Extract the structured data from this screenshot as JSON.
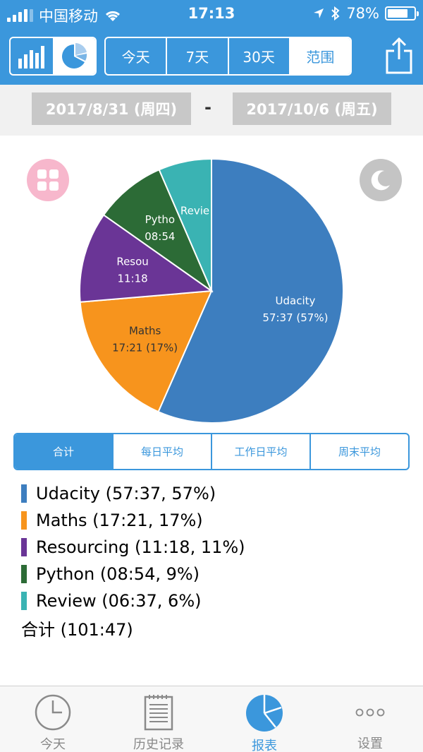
{
  "status_bar": {
    "carrier": "中国移动",
    "time": "17:13",
    "battery": "78%",
    "battery_level": 0.78
  },
  "header": {
    "view_options": [
      {
        "icon": "bar-chart-icon",
        "active": false
      },
      {
        "icon": "pie-chart-icon",
        "active": true
      }
    ],
    "range_tabs": [
      {
        "label": "今天",
        "active": false
      },
      {
        "label": "7天",
        "active": false
      },
      {
        "label": "30天",
        "active": false
      },
      {
        "label": "范围",
        "active": true
      }
    ],
    "share_icon": "share-icon"
  },
  "date_range": {
    "start": "2017/8/31 (周四)",
    "separator": "-",
    "end": "2017/10/6 (周五)"
  },
  "chart_data": {
    "type": "pie",
    "slices": [
      {
        "label": "Udacity",
        "value": "57:37 (57%)",
        "minutes": 3457,
        "color": "#3d7ebf"
      },
      {
        "label": "Maths",
        "value": "17:21 (17%)",
        "minutes": 1041,
        "color": "#f7941d"
      },
      {
        "label": "Resou",
        "value": "11:18",
        "minutes": 678,
        "color": "#6a3596"
      },
      {
        "label": "Pytho",
        "value": "08:54",
        "minutes": 534,
        "color": "#2c6b36"
      },
      {
        "label": "Revie",
        "value": "",
        "minutes": 397,
        "color": "#3ab3b3"
      }
    ]
  },
  "chart_buttons": {
    "left_icon": "grid-icon",
    "left_color": "#f7b7cc",
    "right_icon": "moon-icon",
    "right_color": "#c4c4c4"
  },
  "stat_tabs": [
    {
      "label": "合计",
      "active": true
    },
    {
      "label": "每日平均",
      "active": false
    },
    {
      "label": "工作日平均",
      "active": false
    },
    {
      "label": "周末平均",
      "active": false
    }
  ],
  "legend": {
    "items": [
      {
        "text": "Udacity (57:37, 57%)",
        "color": "#3d7ebf"
      },
      {
        "text": "Maths (17:21, 17%)",
        "color": "#f7941d"
      },
      {
        "text": "Resourcing (11:18, 11%)",
        "color": "#6a3596"
      },
      {
        "text": "Python (08:54, 9%)",
        "color": "#2c6b36"
      },
      {
        "text": "Review (06:37, 6%)",
        "color": "#3ab3b3"
      }
    ],
    "total": "合计 (101:47)"
  },
  "tabbar": [
    {
      "label": "今天",
      "icon": "clock-icon",
      "active": false
    },
    {
      "label": "历史记录",
      "icon": "document-icon",
      "active": false
    },
    {
      "label": "报表",
      "icon": "pie-chart-icon",
      "active": true
    },
    {
      "label": "设置",
      "icon": "more-icon",
      "active": false
    }
  ]
}
